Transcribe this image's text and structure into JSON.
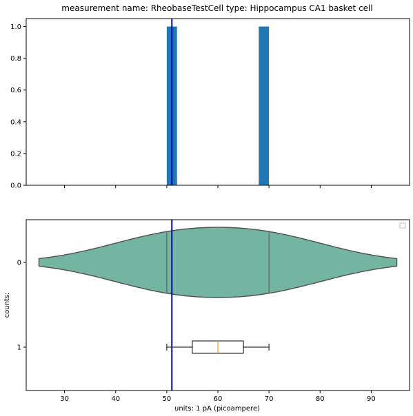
{
  "chart_data": [
    {
      "type": "bar",
      "title": "measurement name: RheobaseTestCell type: Hippocampus CA1 basket cell",
      "xlabel": "",
      "ylabel": "",
      "xlim": [
        22.5,
        97.5
      ],
      "ylim": [
        0.0,
        1.05
      ],
      "yticks": [
        "0.0",
        "0.2",
        "0.4",
        "0.6",
        "0.8",
        "1.0"
      ],
      "ytick_values": [
        0.0,
        0.2,
        0.4,
        0.6,
        0.8,
        1.0
      ],
      "bars": [
        {
          "x0": 50,
          "x1": 52,
          "value": 1.0
        },
        {
          "x0": 68,
          "x1": 70,
          "value": 1.0
        }
      ],
      "bar_color": "#1f77b4",
      "reference_line": {
        "x": 51,
        "color": "#0000cc"
      }
    },
    {
      "type": "violin+box",
      "xlabel": "units: 1 pA (picoampere)",
      "ylabel": "counts:",
      "xlim": [
        22.5,
        97.5
      ],
      "xticks": [
        "30",
        "40",
        "50",
        "60",
        "70",
        "80",
        "90"
      ],
      "xtick_values": [
        30,
        40,
        50,
        60,
        70,
        80,
        90
      ],
      "yticks": [
        "0",
        "1"
      ],
      "violin": {
        "category": "0",
        "samples": [
          50,
          70
        ],
        "extent": [
          25,
          95
        ],
        "inner_lines": [
          50,
          70
        ],
        "fill": "#73b5a0",
        "edge": "#555555"
      },
      "box": {
        "category": "1",
        "whisker_low": 50,
        "q1": 55,
        "median": 60,
        "q3": 65,
        "whisker_high": 70,
        "median_color": "#ff7f0e"
      },
      "reference_line": {
        "x": 51,
        "color": "#0000cc"
      },
      "legend": {
        "placement": "top-right",
        "entries": []
      }
    }
  ]
}
